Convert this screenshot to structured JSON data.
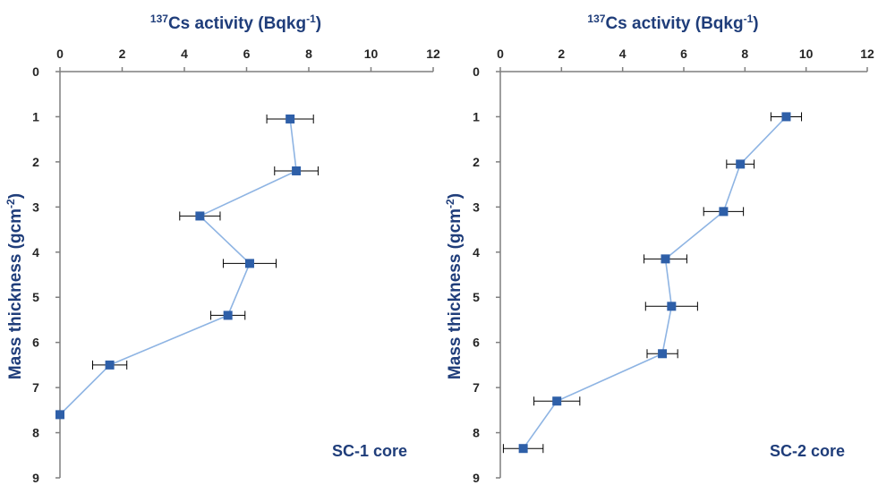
{
  "chart_data": [
    {
      "type": "scatter",
      "title": "",
      "core_label": "SC-1 core",
      "xlabel": {
        "sup": "137",
        "text": "Cs activity (Bqkg",
        "exp": "-1",
        "close": ")"
      },
      "ylabel": {
        "text": "Mass thickness (gcm",
        "exp": "-2",
        "close": ")"
      },
      "xlim": [
        0,
        12
      ],
      "ylim": [
        0,
        9
      ],
      "y_inverted": true,
      "x_axis_position": "top",
      "xticks": [
        "0",
        "2",
        "4",
        "6",
        "8",
        "10",
        "12"
      ],
      "yticks": [
        "0",
        "1",
        "2",
        "3",
        "4",
        "5",
        "6",
        "7",
        "8",
        "9"
      ],
      "grid": false,
      "line_color": "#8eb4e3",
      "marker_color": "#2e5fa8",
      "errorbar_color": "#000000",
      "points": [
        {
          "x": 7.4,
          "y": 1.05,
          "xerr": 0.75
        },
        {
          "x": 7.6,
          "y": 2.2,
          "xerr": 0.7
        },
        {
          "x": 4.5,
          "y": 3.2,
          "xerr": 0.65
        },
        {
          "x": 6.1,
          "y": 4.25,
          "xerr": 0.85
        },
        {
          "x": 5.4,
          "y": 5.4,
          "xerr": 0.55
        },
        {
          "x": 1.6,
          "y": 6.5,
          "xerr": 0.55
        },
        {
          "x": 0.0,
          "y": 7.6,
          "xerr": 0.0
        }
      ]
    },
    {
      "type": "scatter",
      "title": "",
      "core_label": "SC-2 core",
      "xlabel": {
        "sup": "137",
        "text": "Cs activity (Bqkg",
        "exp": "-1",
        "close": ")"
      },
      "ylabel": {
        "text": "Mass thickness (gcm",
        "exp": "-2",
        "close": ")"
      },
      "xlim": [
        0,
        12
      ],
      "ylim": [
        0,
        9
      ],
      "y_inverted": true,
      "x_axis_position": "top",
      "xticks": [
        "0",
        "2",
        "4",
        "6",
        "8",
        "10",
        "12"
      ],
      "yticks": [
        "0",
        "1",
        "2",
        "3",
        "4",
        "5",
        "6",
        "7",
        "8",
        "9"
      ],
      "grid": false,
      "line_color": "#8eb4e3",
      "marker_color": "#2e5fa8",
      "errorbar_color": "#000000",
      "points": [
        {
          "x": 9.35,
          "y": 1.0,
          "xerr": 0.5
        },
        {
          "x": 7.85,
          "y": 2.05,
          "xerr": 0.45
        },
        {
          "x": 7.3,
          "y": 3.1,
          "xerr": 0.65
        },
        {
          "x": 5.4,
          "y": 4.15,
          "xerr": 0.7
        },
        {
          "x": 5.6,
          "y": 5.2,
          "xerr": 0.85
        },
        {
          "x": 5.3,
          "y": 6.25,
          "xerr": 0.5
        },
        {
          "x": 1.85,
          "y": 7.3,
          "xerr": 0.75
        },
        {
          "x": 0.75,
          "y": 8.35,
          "xerr": 0.65
        }
      ]
    }
  ]
}
